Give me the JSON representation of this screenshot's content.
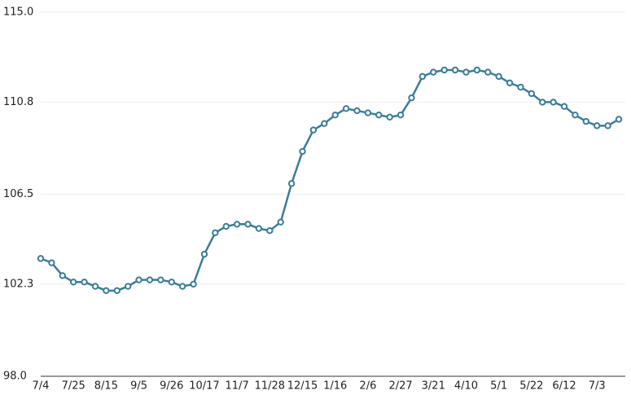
{
  "chart_data": {
    "type": "line",
    "categories": [
      "7/4",
      null,
      null,
      "7/25",
      null,
      null,
      "8/15",
      null,
      null,
      "9/5",
      null,
      null,
      "9/26",
      null,
      null,
      "10/17",
      null,
      null,
      "11/7",
      null,
      null,
      "11/28",
      null,
      null,
      "12/15",
      null,
      null,
      "1/16",
      null,
      null,
      "2/6",
      null,
      null,
      "2/27",
      null,
      null,
      "3/21",
      null,
      null,
      "4/10",
      null,
      null,
      "5/1",
      null,
      null,
      "5/22",
      null,
      null,
      "6/12",
      null,
      null,
      "7/3",
      null,
      null
    ],
    "series": [
      {
        "color": "#3a7d98",
        "values": [
          103.5,
          103.3,
          102.7,
          102.4,
          102.4,
          102.2,
          102.0,
          102.0,
          102.2,
          102.5,
          102.5,
          102.5,
          102.4,
          102.2,
          102.3,
          103.7,
          104.7,
          105.0,
          105.1,
          105.1,
          104.9,
          104.8,
          105.2,
          107.0,
          108.5,
          109.5,
          109.8,
          110.2,
          110.5,
          110.4,
          110.3,
          110.2,
          110.1,
          110.2,
          111.0,
          112.0,
          112.2,
          112.3,
          112.3,
          112.2,
          112.3,
          112.2,
          112.0,
          111.7,
          111.5,
          111.2,
          110.8,
          110.8,
          110.6,
          110.2,
          109.9,
          109.7,
          109.7,
          110.0
        ]
      }
    ],
    "ylim": [
      98,
      115
    ],
    "yticks": [
      {
        "value": 98,
        "label": "98.0"
      },
      102.3,
      106.5,
      110.8,
      {
        "value": 115,
        "label": "115.0"
      }
    ],
    "grid": true
  }
}
